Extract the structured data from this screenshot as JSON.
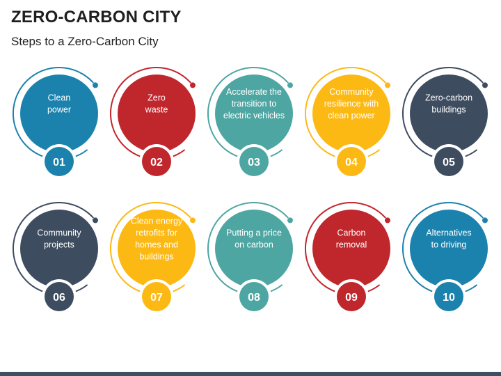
{
  "title": "ZERO-CARBON CITY",
  "subtitle": "Steps to a Zero-Carbon City",
  "colors": {
    "blue": "#1b82ad",
    "red": "#c0272d",
    "teal": "#4ea6a2",
    "yellow": "#fdb913",
    "slate": "#3e4c60"
  },
  "steps": [
    {
      "number": "01",
      "lines": [
        "Clean",
        "power"
      ],
      "color": "#1b82ad"
    },
    {
      "number": "02",
      "lines": [
        "Zero",
        "waste"
      ],
      "color": "#c0272d"
    },
    {
      "number": "03",
      "lines": [
        "Accelerate the",
        "transition to",
        "electric vehicles"
      ],
      "color": "#4ea6a2"
    },
    {
      "number": "04",
      "lines": [
        "Community",
        "resilience with",
        "clean power"
      ],
      "color": "#fdb913"
    },
    {
      "number": "05",
      "lines": [
        "Zero-carbon",
        "buildings"
      ],
      "color": "#3e4c60"
    },
    {
      "number": "06",
      "lines": [
        "Community",
        "projects"
      ],
      "color": "#3e4c60"
    },
    {
      "number": "07",
      "lines": [
        "Clean energy",
        "retrofits for",
        "homes and",
        "buildings"
      ],
      "color": "#fdb913"
    },
    {
      "number": "08",
      "lines": [
        "Putting a price",
        "on carbon"
      ],
      "color": "#4ea6a2"
    },
    {
      "number": "09",
      "lines": [
        "Carbon",
        "removal"
      ],
      "color": "#c0272d"
    },
    {
      "number": "10",
      "lines": [
        "Alternatives",
        "to driving"
      ],
      "color": "#1b82ad"
    }
  ]
}
